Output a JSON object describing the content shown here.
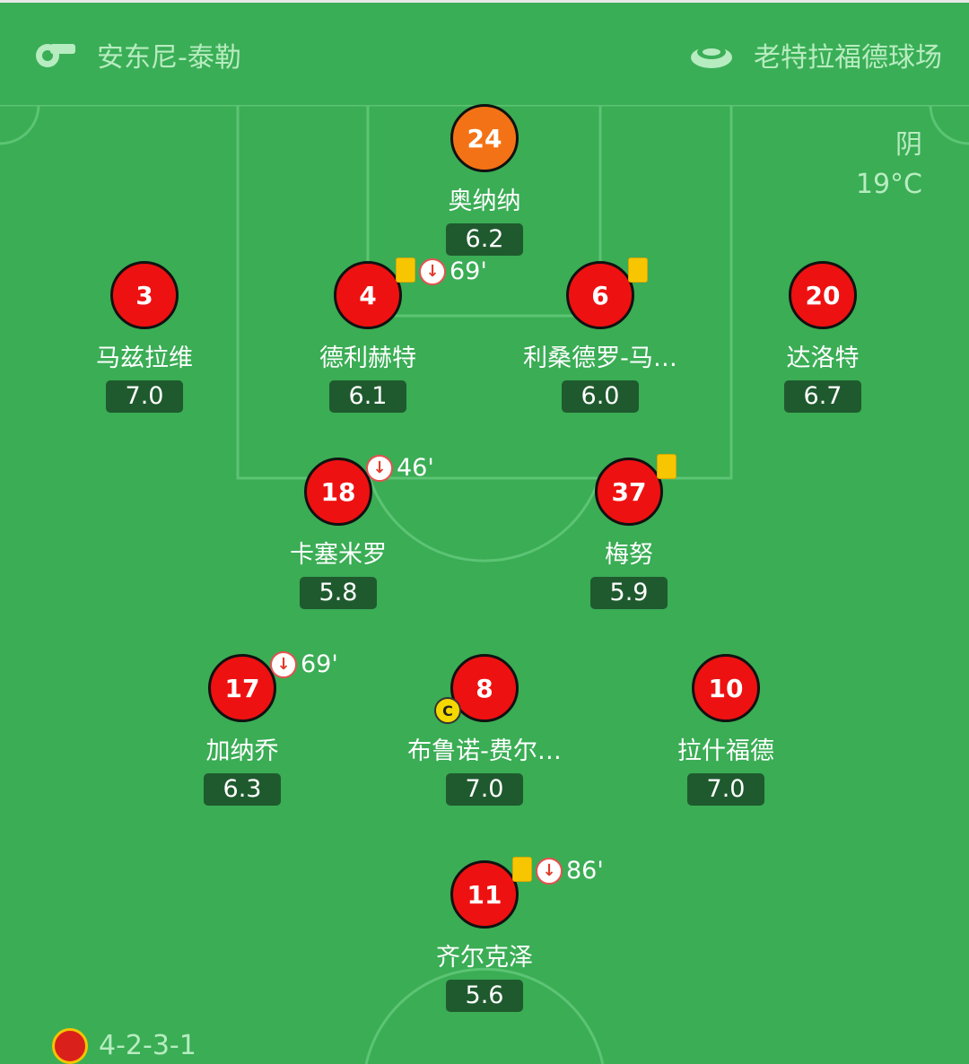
{
  "header": {
    "referee": "安东尼-泰勒",
    "referee_icon": "whistle-icon",
    "venue": "老特拉福德球场",
    "venue_icon": "stadium-icon"
  },
  "weather": {
    "condition": "阴",
    "temperature": "19°C"
  },
  "formation": "4-2-3-1",
  "colors": {
    "pitch": "#3aad55",
    "outfield": "#ee1111",
    "goalkeeper": "#f47216",
    "rating_bg": "#1f5a2e",
    "yellow_card": "#f7c600"
  },
  "players": [
    {
      "number": "24",
      "name": "奥纳纳",
      "rating": "6.2",
      "goalkeeper": true
    },
    {
      "number": "3",
      "name": "马兹拉维",
      "rating": "7.0"
    },
    {
      "number": "4",
      "name": "德利赫特",
      "rating": "6.1",
      "yellow_card": true,
      "sub_off": "69'"
    },
    {
      "number": "6",
      "name": "利桑德罗-马…",
      "rating": "6.0",
      "yellow_card": true
    },
    {
      "number": "20",
      "name": "达洛特",
      "rating": "6.7"
    },
    {
      "number": "18",
      "name": "卡塞米罗",
      "rating": "5.8",
      "sub_off": "46'"
    },
    {
      "number": "37",
      "name": "梅努",
      "rating": "5.9",
      "yellow_card": true
    },
    {
      "number": "17",
      "name": "加纳乔",
      "rating": "6.3",
      "sub_off": "69'"
    },
    {
      "number": "8",
      "name": "布鲁诺-费尔…",
      "rating": "7.0",
      "captain": "C"
    },
    {
      "number": "10",
      "name": "拉什福德",
      "rating": "7.0"
    },
    {
      "number": "11",
      "name": "齐尔克泽",
      "rating": "5.6",
      "yellow_card": true,
      "sub_off": "86'"
    }
  ]
}
